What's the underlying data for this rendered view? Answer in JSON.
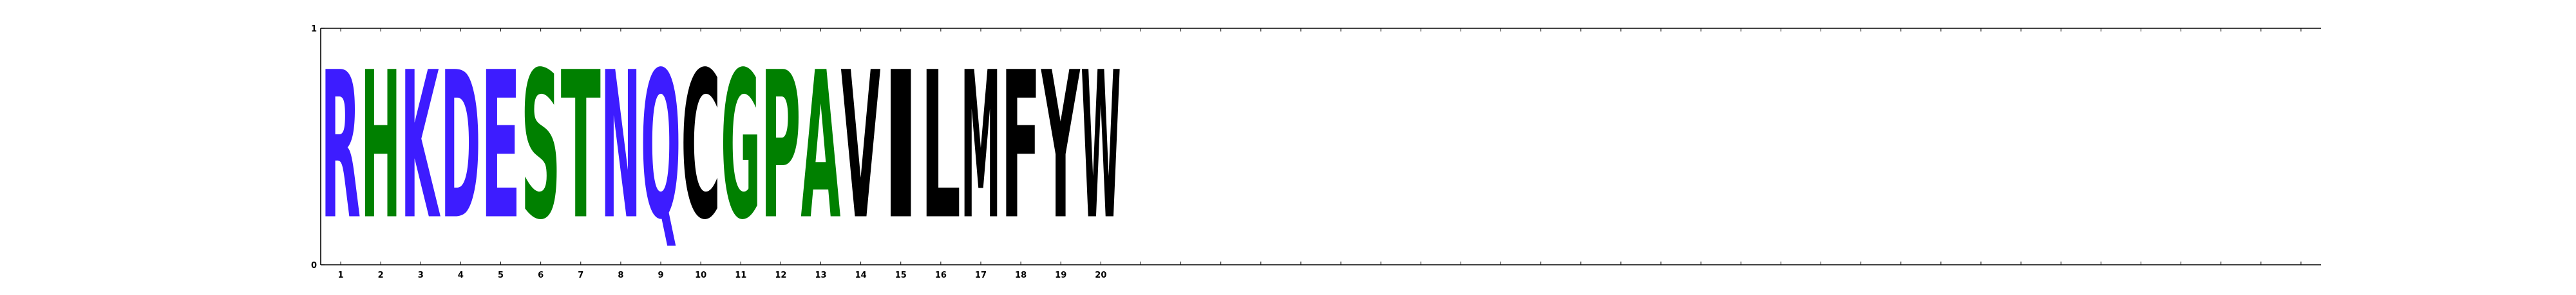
{
  "chart_data": {
    "type": "sequence-logo",
    "title": "",
    "xlabel": "",
    "ylabel": "",
    "ylim": [
      0,
      1
    ],
    "y_ticks": [
      "0",
      "1"
    ],
    "x_ticks": [
      "1",
      "2",
      "3",
      "4",
      "5",
      "6",
      "7",
      "8",
      "9",
      "10",
      "11",
      "12",
      "13",
      "14",
      "15",
      "16",
      "17",
      "18",
      "19",
      "20"
    ],
    "x_range": [
      0.5,
      50.5
    ],
    "grid": false,
    "color_scheme": {
      "basic": "#3d1cff",
      "acidic": "#3d1cff",
      "polar": "#008000",
      "hydrophobic": "#000000"
    },
    "positions": [
      {
        "pos": 1,
        "letters": [
          {
            "char": "R",
            "height": 1.0,
            "color": "#3d1cff"
          }
        ]
      },
      {
        "pos": 2,
        "letters": [
          {
            "char": "H",
            "height": 1.0,
            "color": "#008000"
          }
        ]
      },
      {
        "pos": 3,
        "letters": [
          {
            "char": "K",
            "height": 1.0,
            "color": "#3d1cff"
          }
        ]
      },
      {
        "pos": 4,
        "letters": [
          {
            "char": "D",
            "height": 1.0,
            "color": "#3d1cff"
          }
        ]
      },
      {
        "pos": 5,
        "letters": [
          {
            "char": "E",
            "height": 1.0,
            "color": "#3d1cff"
          }
        ]
      },
      {
        "pos": 6,
        "letters": [
          {
            "char": "S",
            "height": 1.0,
            "color": "#008000"
          }
        ]
      },
      {
        "pos": 7,
        "letters": [
          {
            "char": "T",
            "height": 1.0,
            "color": "#008000"
          }
        ]
      },
      {
        "pos": 8,
        "letters": [
          {
            "char": "N",
            "height": 1.0,
            "color": "#3d1cff"
          }
        ]
      },
      {
        "pos": 9,
        "letters": [
          {
            "char": "Q",
            "height": 1.0,
            "color": "#3d1cff"
          }
        ]
      },
      {
        "pos": 10,
        "letters": [
          {
            "char": "C",
            "height": 1.0,
            "color": "#000000"
          }
        ]
      },
      {
        "pos": 11,
        "letters": [
          {
            "char": "G",
            "height": 1.0,
            "color": "#008000"
          }
        ]
      },
      {
        "pos": 12,
        "letters": [
          {
            "char": "P",
            "height": 1.0,
            "color": "#008000"
          }
        ]
      },
      {
        "pos": 13,
        "letters": [
          {
            "char": "A",
            "height": 1.0,
            "color": "#008000"
          }
        ]
      },
      {
        "pos": 14,
        "letters": [
          {
            "char": "V",
            "height": 1.0,
            "color": "#000000"
          }
        ]
      },
      {
        "pos": 15,
        "letters": [
          {
            "char": "I",
            "height": 1.0,
            "color": "#000000"
          }
        ]
      },
      {
        "pos": 16,
        "letters": [
          {
            "char": "L",
            "height": 1.0,
            "color": "#000000"
          }
        ]
      },
      {
        "pos": 17,
        "letters": [
          {
            "char": "M",
            "height": 1.0,
            "color": "#000000"
          }
        ]
      },
      {
        "pos": 18,
        "letters": [
          {
            "char": "F",
            "height": 1.0,
            "color": "#000000"
          }
        ]
      },
      {
        "pos": 19,
        "letters": [
          {
            "char": "Y",
            "height": 1.0,
            "color": "#000000"
          }
        ]
      },
      {
        "pos": 20,
        "letters": [
          {
            "char": "W",
            "height": 1.0,
            "color": "#000000"
          }
        ]
      }
    ]
  }
}
